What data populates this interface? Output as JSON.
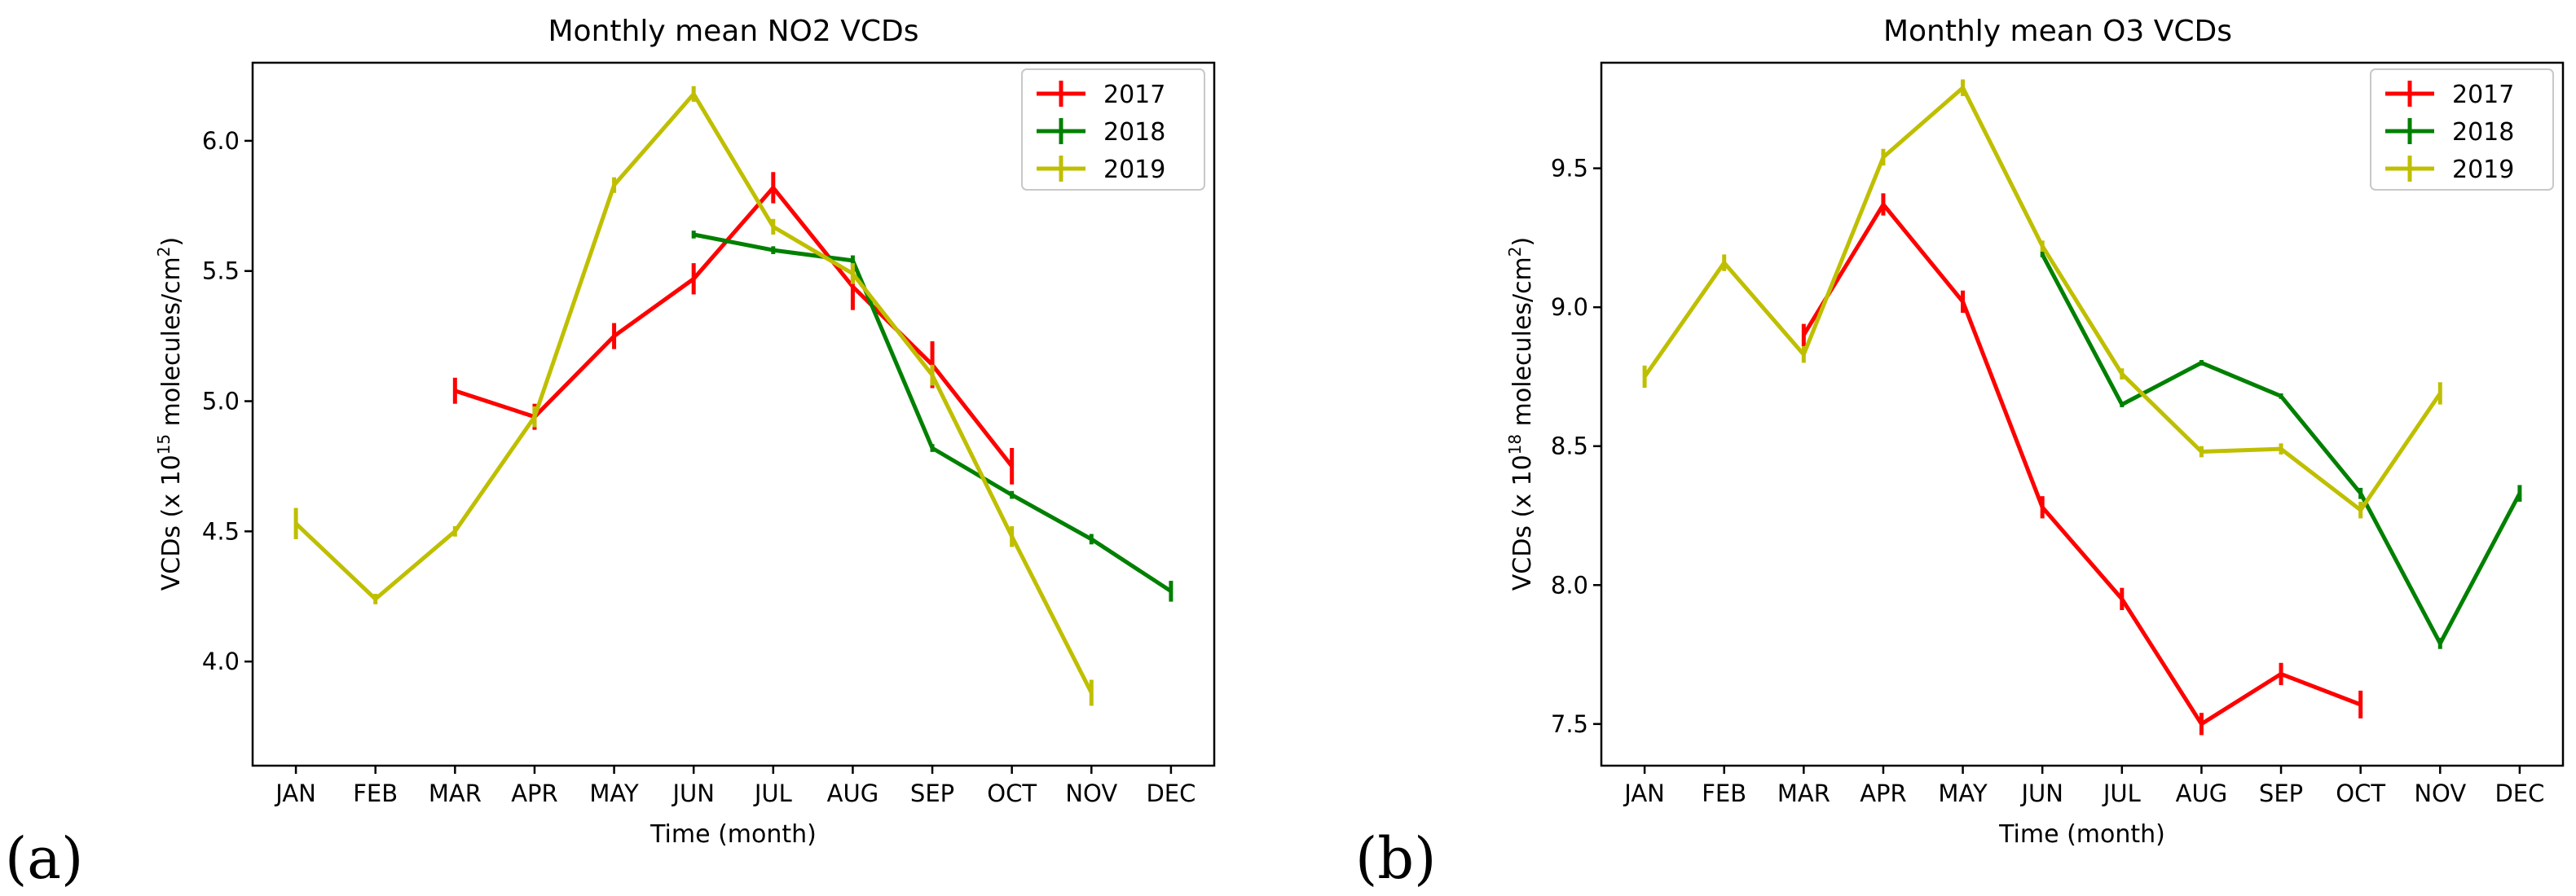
{
  "panels": [
    {
      "letter": "(a)",
      "ylabel_main": "VCDs (x 10",
      "ylabel_exp": "15",
      "ylabel_rest": " molecules/cm",
      "ylabel_sq": "2",
      "ylabel_end": ")"
    },
    {
      "letter": "(b)",
      "ylabel_main": "VCDs (x 10",
      "ylabel_exp": "18",
      "ylabel_rest": " molecules/cm",
      "ylabel_sq": "2",
      "ylabel_end": ")"
    }
  ],
  "chart_data": [
    {
      "type": "line",
      "title": "Monthly mean NO2 VCDs",
      "xlabel": "Time (month)",
      "ylabel": "VCDs (x 10^15 molecules/cm^2)",
      "categories": [
        "JAN",
        "FEB",
        "MAR",
        "APR",
        "MAY",
        "JUN",
        "JUL",
        "AUG",
        "SEP",
        "OCT",
        "NOV",
        "DEC"
      ],
      "ylim": [
        3.6,
        6.3
      ],
      "yticks": [
        4.0,
        4.5,
        5.0,
        5.5,
        6.0
      ],
      "ytick_labels": [
        "4.0",
        "4.5",
        "5.0",
        "5.5",
        "6.0"
      ],
      "legend_position": "top-right",
      "series": [
        {
          "name": "2017",
          "color": "#ff0000",
          "values": [
            null,
            null,
            5.04,
            4.94,
            5.25,
            5.47,
            5.82,
            5.44,
            5.14,
            4.75,
            null,
            null
          ],
          "errors": [
            null,
            null,
            0.05,
            0.05,
            0.05,
            0.06,
            0.06,
            0.09,
            0.09,
            0.07,
            null,
            null
          ]
        },
        {
          "name": "2018",
          "color": "#008000",
          "values": [
            null,
            null,
            null,
            null,
            null,
            5.64,
            5.58,
            5.54,
            4.82,
            4.64,
            4.47,
            4.27
          ],
          "errors": [
            null,
            null,
            null,
            null,
            null,
            0.015,
            0.015,
            0.02,
            0.015,
            0.015,
            0.02,
            0.04
          ]
        },
        {
          "name": "2019",
          "color": "#bfbf00",
          "values": [
            4.53,
            4.24,
            4.5,
            4.94,
            5.83,
            6.18,
            5.67,
            5.49,
            5.1,
            4.48,
            3.88,
            null
          ],
          "errors": [
            0.06,
            0.02,
            0.02,
            0.04,
            0.03,
            0.03,
            0.03,
            0.04,
            0.04,
            0.04,
            0.05,
            null
          ]
        }
      ]
    },
    {
      "type": "line",
      "title": "Monthly mean O3 VCDs",
      "xlabel": "Time (month)",
      "ylabel": "VCDs (x 10^18 molecules/cm^2)",
      "categories": [
        "JAN",
        "FEB",
        "MAR",
        "APR",
        "MAY",
        "JUN",
        "JUL",
        "AUG",
        "SEP",
        "OCT",
        "NOV",
        "DEC"
      ],
      "ylim": [
        7.35,
        9.88
      ],
      "yticks": [
        7.5,
        8.0,
        8.5,
        9.0,
        9.5
      ],
      "ytick_labels": [
        "7.5",
        "8.0",
        "8.5",
        "9.0",
        "9.5"
      ],
      "legend_position": "top-right",
      "series": [
        {
          "name": "2017",
          "color": "#ff0000",
          "values": [
            null,
            null,
            8.9,
            9.37,
            9.02,
            8.28,
            7.95,
            7.5,
            7.68,
            7.57,
            null,
            null
          ],
          "errors": [
            null,
            null,
            0.04,
            0.04,
            0.04,
            0.04,
            0.04,
            0.04,
            0.04,
            0.05,
            null,
            null
          ]
        },
        {
          "name": "2018",
          "color": "#008000",
          "values": [
            null,
            null,
            null,
            null,
            null,
            9.19,
            8.65,
            8.8,
            8.68,
            8.33,
            7.79,
            8.33
          ],
          "errors": [
            null,
            null,
            null,
            null,
            null,
            0.01,
            0.01,
            0.01,
            0.01,
            0.02,
            0.02,
            0.03
          ]
        },
        {
          "name": "2019",
          "color": "#bfbf00",
          "values": [
            8.75,
            9.16,
            8.83,
            9.54,
            9.79,
            9.22,
            8.76,
            8.48,
            8.49,
            8.27,
            8.69,
            null
          ],
          "errors": [
            0.04,
            0.03,
            0.03,
            0.03,
            0.03,
            0.02,
            0.02,
            0.02,
            0.02,
            0.03,
            0.04,
            null
          ]
        }
      ]
    }
  ]
}
